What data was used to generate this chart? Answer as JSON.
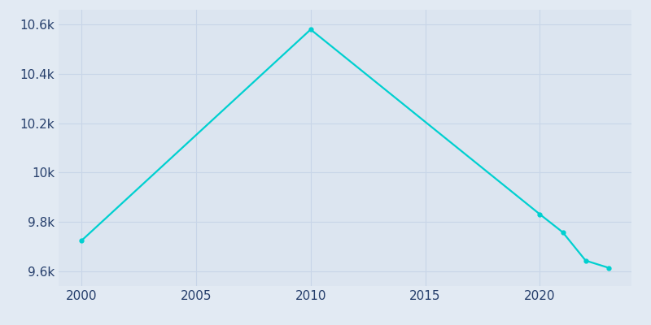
{
  "years": [
    2000,
    2010,
    2020,
    2021,
    2022,
    2023
  ],
  "population": [
    9724,
    10580,
    9831,
    9758,
    9643,
    9614
  ],
  "line_color": "#00d0d0",
  "bg_color": "#e2eaf3",
  "plot_bg_color": "#dce5f0",
  "tick_color": "#253e6b",
  "grid_color": "#c8d5e8",
  "ylim": [
    9540,
    10660
  ],
  "xlim": [
    1999.0,
    2024.0
  ],
  "ytick_values": [
    9600,
    9800,
    10000,
    10200,
    10400,
    10600
  ],
  "ytick_labels": [
    "9.6k",
    "9.8k",
    "10k",
    "10.2k",
    "10.4k",
    "10.6k"
  ],
  "xtick_values": [
    2000,
    2005,
    2010,
    2015,
    2020
  ],
  "line_width": 1.6,
  "marker_size": 3.5
}
